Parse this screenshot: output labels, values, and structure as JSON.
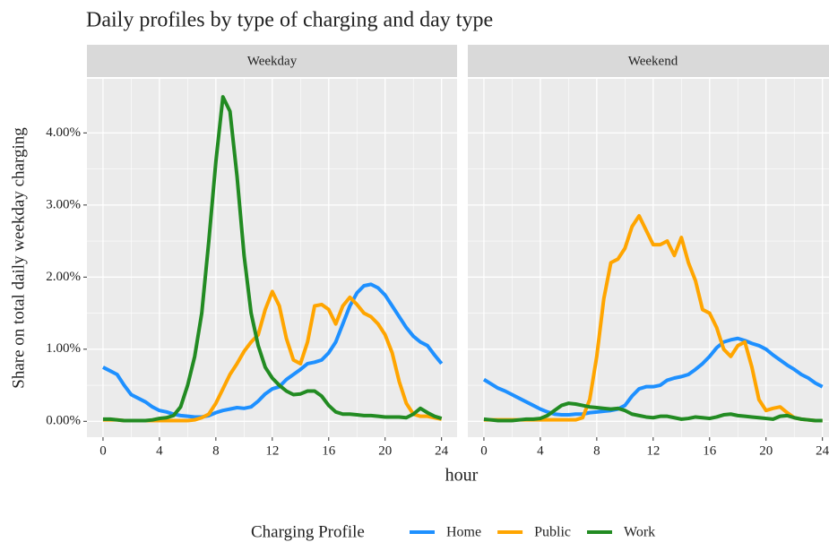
{
  "chart_data": [
    {
      "type": "line",
      "title": "Daily profiles by type of charging and day type",
      "subtitle": "Weekday",
      "xlabel": "hour",
      "ylabel": "Share on total daily weekday charging",
      "legend_title": "Charging Profile",
      "legend": "bottom",
      "grid": true,
      "xlim": [
        -1.14,
        25.1
      ],
      "ylim": [
        -0.22,
        4.75
      ],
      "xticks": [
        0,
        4,
        8,
        12,
        16,
        20,
        24
      ],
      "yticks": [
        {
          "value": 0,
          "label": "0.00%"
        },
        {
          "value": 1,
          "label": "1.00%"
        },
        {
          "value": 2,
          "label": "2.00%"
        },
        {
          "value": 3,
          "label": "3.00%"
        },
        {
          "value": 4,
          "label": "4.00%"
        }
      ],
      "x": [
        0,
        0.5,
        1,
        1.5,
        2,
        2.5,
        3,
        3.5,
        4,
        4.5,
        5,
        5.5,
        6,
        6.5,
        7,
        7.5,
        8,
        8.5,
        9,
        9.5,
        10,
        10.5,
        11,
        11.5,
        12,
        12.5,
        13,
        13.5,
        14,
        14.5,
        15,
        15.5,
        16,
        16.5,
        17,
        17.5,
        18,
        18.5,
        19,
        19.5,
        20,
        20.5,
        21,
        21.5,
        22,
        22.5,
        23,
        23.5,
        24
      ],
      "series": [
        {
          "name": "Home",
          "color": "#1e90ff",
          "values": [
            0.75,
            0.7,
            0.65,
            0.5,
            0.37,
            0.32,
            0.27,
            0.2,
            0.15,
            0.13,
            0.1,
            0.08,
            0.07,
            0.06,
            0.06,
            0.08,
            0.12,
            0.15,
            0.17,
            0.19,
            0.18,
            0.2,
            0.28,
            0.38,
            0.45,
            0.48,
            0.58,
            0.65,
            0.72,
            0.8,
            0.82,
            0.85,
            0.95,
            1.1,
            1.35,
            1.6,
            1.78,
            1.88,
            1.9,
            1.85,
            1.75,
            1.6,
            1.45,
            1.3,
            1.18,
            1.1,
            1.05,
            0.92,
            0.8
          ]
        },
        {
          "name": "Public",
          "color": "#ffa500",
          "values": [
            0.02,
            0.02,
            0.02,
            0.01,
            0.01,
            0.01,
            0.01,
            0.01,
            0.01,
            0.01,
            0.01,
            0.01,
            0.01,
            0.02,
            0.05,
            0.1,
            0.25,
            0.45,
            0.65,
            0.8,
            0.97,
            1.1,
            1.2,
            1.55,
            1.8,
            1.6,
            1.15,
            0.85,
            0.8,
            1.1,
            1.6,
            1.62,
            1.55,
            1.35,
            1.6,
            1.72,
            1.62,
            1.5,
            1.45,
            1.35,
            1.2,
            0.95,
            0.55,
            0.25,
            0.1,
            0.07,
            0.07,
            0.05,
            0.03
          ]
        },
        {
          "name": "Work",
          "color": "#228b22",
          "values": [
            0.03,
            0.03,
            0.02,
            0.01,
            0.01,
            0.01,
            0.01,
            0.02,
            0.04,
            0.05,
            0.08,
            0.2,
            0.5,
            0.9,
            1.5,
            2.5,
            3.6,
            4.5,
            4.3,
            3.4,
            2.3,
            1.5,
            1.05,
            0.75,
            0.6,
            0.5,
            0.42,
            0.37,
            0.38,
            0.42,
            0.42,
            0.35,
            0.22,
            0.13,
            0.1,
            0.1,
            0.09,
            0.08,
            0.08,
            0.07,
            0.06,
            0.06,
            0.06,
            0.05,
            0.1,
            0.18,
            0.12,
            0.07,
            0.04
          ]
        }
      ]
    },
    {
      "type": "line",
      "subtitle": "Weekend",
      "xlim": [
        -1.14,
        25.1
      ],
      "ylim": [
        -0.22,
        4.75
      ],
      "xticks": [
        0,
        4,
        8,
        12,
        16,
        20,
        24
      ],
      "x": [
        0,
        0.5,
        1,
        1.5,
        2,
        2.5,
        3,
        3.5,
        4,
        4.5,
        5,
        5.5,
        6,
        6.5,
        7,
        7.5,
        8,
        8.5,
        9,
        9.5,
        10,
        10.5,
        11,
        11.5,
        12,
        12.5,
        13,
        13.5,
        14,
        14.5,
        15,
        15.5,
        16,
        16.5,
        17,
        17.5,
        18,
        18.5,
        19,
        19.5,
        20,
        20.5,
        21,
        21.5,
        22,
        22.5,
        23,
        23.5,
        24
      ],
      "series": [
        {
          "name": "Home",
          "color": "#1e90ff",
          "values": [
            0.58,
            0.52,
            0.46,
            0.42,
            0.37,
            0.32,
            0.27,
            0.22,
            0.17,
            0.13,
            0.1,
            0.09,
            0.09,
            0.1,
            0.1,
            0.12,
            0.13,
            0.14,
            0.15,
            0.17,
            0.22,
            0.35,
            0.45,
            0.48,
            0.48,
            0.5,
            0.57,
            0.6,
            0.62,
            0.65,
            0.72,
            0.8,
            0.9,
            1.02,
            1.1,
            1.13,
            1.15,
            1.12,
            1.08,
            1.05,
            1.0,
            0.92,
            0.85,
            0.78,
            0.72,
            0.65,
            0.6,
            0.53,
            0.48
          ]
        },
        {
          "name": "Public",
          "color": "#ffa500",
          "values": [
            0.02,
            0.02,
            0.02,
            0.02,
            0.02,
            0.02,
            0.02,
            0.02,
            0.02,
            0.02,
            0.02,
            0.02,
            0.02,
            0.02,
            0.05,
            0.3,
            0.9,
            1.7,
            2.2,
            2.25,
            2.4,
            2.7,
            2.85,
            2.65,
            2.45,
            2.45,
            2.5,
            2.3,
            2.55,
            2.2,
            1.95,
            1.55,
            1.5,
            1.3,
            1.0,
            0.9,
            1.05,
            1.1,
            0.75,
            0.3,
            0.15,
            0.18,
            0.2,
            0.12,
            0.05,
            0.03,
            0.02,
            0.01,
            0.01
          ]
        },
        {
          "name": "Work",
          "color": "#228b22",
          "values": [
            0.03,
            0.02,
            0.01,
            0.01,
            0.01,
            0.02,
            0.03,
            0.03,
            0.04,
            0.08,
            0.15,
            0.22,
            0.25,
            0.24,
            0.22,
            0.2,
            0.19,
            0.18,
            0.17,
            0.18,
            0.15,
            0.1,
            0.08,
            0.06,
            0.05,
            0.07,
            0.07,
            0.05,
            0.03,
            0.04,
            0.06,
            0.05,
            0.04,
            0.06,
            0.09,
            0.1,
            0.08,
            0.07,
            0.06,
            0.05,
            0.04,
            0.03,
            0.07,
            0.08,
            0.05,
            0.03,
            0.02,
            0.01,
            0.01
          ]
        }
      ]
    }
  ]
}
